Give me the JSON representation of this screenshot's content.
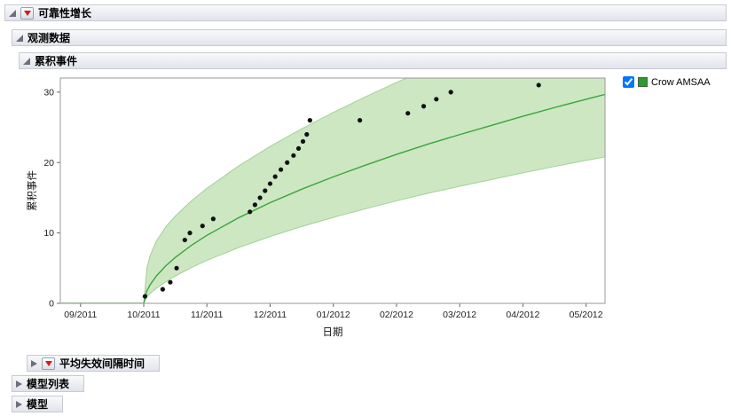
{
  "window": {
    "background": "#ffffff"
  },
  "outline": {
    "reliability_growth": {
      "title": "可靠性增长",
      "state": "open",
      "has_red_triangle": true
    },
    "observed_data": {
      "title": "观测数据",
      "state": "open",
      "has_red_triangle": false
    },
    "cumulative_events": {
      "title": "累积事件",
      "state": "open",
      "has_red_triangle": false
    },
    "mtbf": {
      "title": "平均失效间隔时间",
      "state": "closed",
      "has_red_triangle": true
    },
    "model_list": {
      "title": "模型列表",
      "state": "closed",
      "has_red_triangle": false
    },
    "models": {
      "title": "模型",
      "state": "closed",
      "has_red_triangle": false
    }
  },
  "legend": {
    "label": "Crow AMSAA",
    "checked": true,
    "swatch_color": "#2c9a2c"
  },
  "chart_data": {
    "type": "scatter",
    "title": "",
    "xlabel": "日期",
    "ylabel": "累积事件",
    "x_unit": "months since 09/2011",
    "x_tick_labels": [
      "09/2011",
      "10/2011",
      "11/2011",
      "12/2011",
      "01/2012",
      "02/2012",
      "03/2012",
      "04/2012",
      "05/2012"
    ],
    "x_tick_positions": [
      0,
      1,
      2,
      3,
      4,
      5,
      6,
      7,
      8
    ],
    "xlim": [
      -0.32,
      8.3
    ],
    "y_ticks": [
      0,
      10,
      20,
      30
    ],
    "ylim": [
      0,
      32
    ],
    "grid": false,
    "legend_position": "right-outside",
    "points": {
      "name": "观测累积事件",
      "color": "#111111",
      "x": [
        1.02,
        1.3,
        1.42,
        1.52,
        1.65,
        1.73,
        1.93,
        2.1,
        2.68,
        2.76,
        2.84,
        2.92,
        3.0,
        3.08,
        3.17,
        3.27,
        3.37,
        3.45,
        3.52,
        3.58,
        3.63,
        4.42,
        5.18,
        5.43,
        5.63,
        5.86,
        7.25
      ],
      "y": [
        1,
        2,
        3,
        5,
        9,
        10,
        11,
        12,
        13,
        14,
        15,
        16,
        17,
        18,
        19,
        20,
        21,
        22,
        23,
        24,
        26,
        26,
        27,
        28,
        29,
        30,
        31
      ]
    },
    "fit": {
      "name": "Crow AMSAA",
      "line_color": "#3aa53a",
      "band_fill": "#cde7c3",
      "band_edge": "#a3d098",
      "x": [
        1.0,
        1.05,
        1.1,
        1.2,
        1.35,
        1.5,
        1.75,
        2.0,
        2.5,
        3.0,
        3.5,
        4.0,
        4.5,
        5.0,
        5.5,
        6.0,
        6.5,
        7.0,
        7.5,
        8.0,
        8.3
      ],
      "y": [
        0,
        1.78,
        2.63,
        3.89,
        5.34,
        6.53,
        8.21,
        9.66,
        12.15,
        14.3,
        16.21,
        17.97,
        19.6,
        21.16,
        22.62,
        23.97,
        25.27,
        26.57,
        27.81,
        28.99,
        29.68
      ],
      "upper": [
        0,
        4.98,
        6.75,
        8.85,
        10.87,
        12.41,
        14.52,
        16.34,
        19.51,
        22.29,
        24.8,
        27.12,
        29.3,
        31.38,
        33.34,
        35.16,
        36.92,
        38.69,
        40.38,
        42.01,
        42.95
      ],
      "lower": [
        0,
        0.93,
        1.4,
        2.15,
        3.08,
        3.89,
        5.06,
        6.1,
        7.92,
        9.5,
        10.91,
        12.21,
        13.41,
        14.56,
        15.64,
        16.63,
        17.58,
        18.53,
        19.44,
        20.3,
        20.81
      ]
    }
  }
}
